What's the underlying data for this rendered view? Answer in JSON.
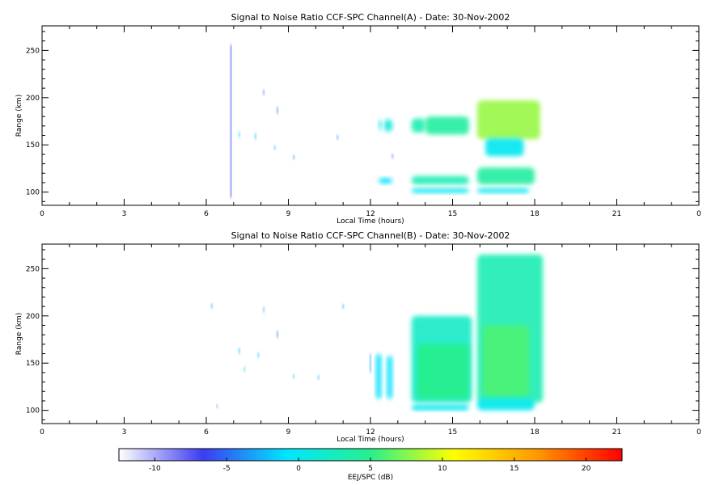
{
  "colorbar": {
    "label": "EEJ/SPC (dB)",
    "min": -12.5,
    "max": 22.5,
    "ticks": [
      "-10",
      "-5",
      "0",
      "5",
      "10",
      "15",
      "20"
    ],
    "tick_values": [
      -10,
      -5,
      0,
      5,
      10,
      15,
      20
    ],
    "colors": [
      "#ffffff",
      "#3c3cf0",
      "#00e6ff",
      "#28f08c",
      "#ffff00",
      "#ff9600",
      "#ff0000"
    ]
  },
  "chart_data": [
    {
      "type": "heatmap",
      "title": "Signal to Noise Ratio CCF-SPC Channel(A) - Date: 30-Nov-2002",
      "xlabel": "Local Time (hours)",
      "ylabel": "Range (km)",
      "xlim": [
        0,
        24
      ],
      "ylim": [
        86,
        276
      ],
      "x_ticks": [
        "0",
        "3",
        "6",
        "9",
        "12",
        "15",
        "18",
        "21",
        "0"
      ],
      "x_tick_values": [
        0,
        3,
        6,
        9,
        12,
        15,
        18,
        21,
        24
      ],
      "y_ticks": [
        "100",
        "150",
        "200",
        "250"
      ],
      "y_tick_values": [
        100,
        150,
        200,
        250
      ],
      "blobs": [
        {
          "t0": 12.3,
          "t1": 12.4,
          "r0": 165,
          "r1": 177,
          "value": 0
        },
        {
          "t0": 12.5,
          "t1": 12.8,
          "r0": 164,
          "r1": 177,
          "value": 1
        },
        {
          "t0": 13.5,
          "t1": 14.0,
          "r0": 163,
          "r1": 178,
          "value": 3
        },
        {
          "t0": 14.0,
          "t1": 15.6,
          "r0": 161,
          "r1": 180,
          "value": 4
        },
        {
          "t0": 15.9,
          "t1": 18.2,
          "r0": 156,
          "r1": 197,
          "value": 8
        },
        {
          "t0": 16.2,
          "t1": 17.6,
          "r0": 138,
          "r1": 157,
          "value": 0
        },
        {
          "t0": 13.5,
          "t1": 15.6,
          "r0": 108,
          "r1": 117,
          "value": 3
        },
        {
          "t0": 15.9,
          "t1": 18.0,
          "r0": 108,
          "r1": 126,
          "value": 4
        },
        {
          "t0": 13.5,
          "t1": 15.6,
          "r0": 99,
          "r1": 104,
          "value": 0
        },
        {
          "t0": 15.9,
          "t1": 17.8,
          "r0": 99,
          "r1": 104,
          "value": 0
        },
        {
          "t0": 12.3,
          "t1": 12.8,
          "r0": 109,
          "r1": 115,
          "value": -1
        }
      ],
      "specks": [
        {
          "t": 6.9,
          "r0": 94,
          "r1": 256,
          "value": -6
        },
        {
          "t": 7.2,
          "r0": 158,
          "r1": 164,
          "value": 0
        },
        {
          "t": 7.8,
          "r0": 156,
          "r1": 162,
          "value": -2
        },
        {
          "t": 8.1,
          "r0": 203,
          "r1": 208,
          "value": -5
        },
        {
          "t": 8.6,
          "r0": 183,
          "r1": 190,
          "value": -5
        },
        {
          "t": 8.5,
          "r0": 145,
          "r1": 149,
          "value": -3
        },
        {
          "t": 9.2,
          "r0": 135,
          "r1": 139,
          "value": -4
        },
        {
          "t": 10.8,
          "r0": 156,
          "r1": 160,
          "value": -4
        },
        {
          "t": 12.8,
          "r0": 136,
          "r1": 140,
          "value": -5
        }
      ]
    },
    {
      "type": "heatmap",
      "title": "Signal to Noise Ratio CCF-SPC Channel(B) - Date: 30-Nov-2002",
      "xlabel": "Local Time (hours)",
      "ylabel": "Range (km)",
      "xlim": [
        0,
        24
      ],
      "ylim": [
        86,
        276
      ],
      "x_ticks": [
        "0",
        "3",
        "6",
        "9",
        "12",
        "15",
        "18",
        "21",
        "0"
      ],
      "x_tick_values": [
        0,
        3,
        6,
        9,
        12,
        15,
        18,
        21,
        24
      ],
      "y_ticks": [
        "100",
        "150",
        "200",
        "250"
      ],
      "y_tick_values": [
        100,
        150,
        200,
        250
      ],
      "blobs": [
        {
          "t0": 12.2,
          "t1": 12.4,
          "r0": 112,
          "r1": 160,
          "value": -1
        },
        {
          "t0": 12.6,
          "t1": 12.8,
          "r0": 112,
          "r1": 158,
          "value": -1
        },
        {
          "t0": 13.5,
          "t1": 15.7,
          "r0": 108,
          "r1": 200,
          "value": 2
        },
        {
          "t0": 13.7,
          "t1": 15.6,
          "r0": 112,
          "r1": 170,
          "value": 5
        },
        {
          "t0": 15.9,
          "t1": 18.3,
          "r0": 108,
          "r1": 265,
          "value": 3
        },
        {
          "t0": 16.1,
          "t1": 17.8,
          "r0": 115,
          "r1": 190,
          "value": 6
        },
        {
          "t0": 13.5,
          "t1": 15.6,
          "r0": 100,
          "r1": 106,
          "value": 0
        },
        {
          "t0": 15.9,
          "t1": 18.0,
          "r0": 100,
          "r1": 112,
          "value": 0
        }
      ],
      "specks": [
        {
          "t": 6.2,
          "r0": 208,
          "r1": 213,
          "value": -3
        },
        {
          "t": 6.4,
          "r0": 103,
          "r1": 106,
          "value": -4
        },
        {
          "t": 7.2,
          "r0": 160,
          "r1": 166,
          "value": -2
        },
        {
          "t": 7.4,
          "r0": 141,
          "r1": 146,
          "value": 0
        },
        {
          "t": 7.9,
          "r0": 156,
          "r1": 161,
          "value": -2
        },
        {
          "t": 8.1,
          "r0": 204,
          "r1": 209,
          "value": -3
        },
        {
          "t": 8.6,
          "r0": 177,
          "r1": 184,
          "value": -5
        },
        {
          "t": 9.2,
          "r0": 134,
          "r1": 138,
          "value": -2
        },
        {
          "t": 10.1,
          "r0": 133,
          "r1": 137,
          "value": -3
        },
        {
          "t": 11.0,
          "r0": 208,
          "r1": 212,
          "value": -4
        },
        {
          "t": 12.0,
          "r0": 140,
          "r1": 160,
          "value": -3
        }
      ]
    }
  ]
}
